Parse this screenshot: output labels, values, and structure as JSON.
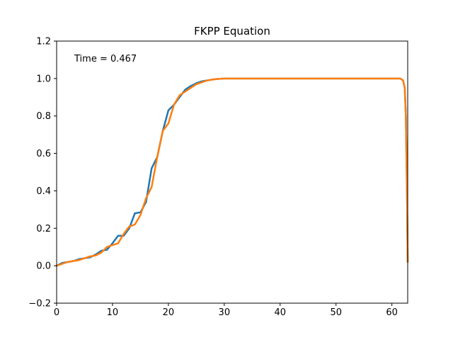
{
  "chart_data": {
    "type": "line",
    "title": "FKPP Equation",
    "annotation": "Time = 0.467",
    "xlim": [
      0,
      62.83
    ],
    "ylim": [
      -0.2,
      1.2
    ],
    "x_ticks": [
      0,
      10,
      20,
      30,
      40,
      50,
      60
    ],
    "y_ticks": [
      -0.2,
      0.0,
      0.2,
      0.4,
      0.6,
      0.8,
      1.0,
      1.2
    ],
    "x_tick_labels": [
      "0",
      "10",
      "20",
      "30",
      "40",
      "50",
      "60"
    ],
    "y_tick_labels": [
      "−0.2",
      "0.0",
      "0.2",
      "0.4",
      "0.6",
      "0.8",
      "1.0",
      "1.2"
    ],
    "grid": false,
    "series": [
      {
        "color": "#1f77b4",
        "x": [
          0,
          1,
          2,
          3,
          4,
          5,
          6,
          7,
          8,
          9,
          10,
          11,
          12,
          13,
          14,
          15,
          16,
          17,
          18,
          19,
          20,
          21,
          22,
          23,
          24,
          25,
          26,
          27,
          28,
          29,
          30,
          32,
          35,
          40,
          45,
          50,
          55,
          60,
          61,
          61.5,
          62,
          62.3,
          62.5,
          62.7,
          62.83
        ],
        "y": [
          0.0,
          0.015,
          0.02,
          0.025,
          0.035,
          0.04,
          0.045,
          0.06,
          0.08,
          0.085,
          0.12,
          0.16,
          0.16,
          0.2,
          0.28,
          0.285,
          0.34,
          0.52,
          0.58,
          0.72,
          0.83,
          0.86,
          0.9,
          0.94,
          0.96,
          0.975,
          0.985,
          0.99,
          0.995,
          0.998,
          1.0,
          1.0,
          1.0,
          1.0,
          1.0,
          1.0,
          1.0,
          1.0,
          1.0,
          1.0,
          0.99,
          0.95,
          0.8,
          0.4,
          0.02
        ]
      },
      {
        "color": "#ff7f0e",
        "x": [
          0,
          1,
          2,
          3,
          4,
          5,
          6,
          7,
          8,
          9,
          10,
          11,
          12,
          13,
          14,
          15,
          16,
          17,
          18,
          19,
          20,
          21,
          22,
          23,
          24,
          25,
          26,
          27,
          28,
          29,
          30,
          32,
          35,
          40,
          45,
          50,
          55,
          60,
          61,
          61.5,
          62,
          62.3,
          62.5,
          62.7,
          62.83
        ],
        "y": [
          0.0,
          0.01,
          0.02,
          0.025,
          0.03,
          0.04,
          0.05,
          0.055,
          0.07,
          0.1,
          0.11,
          0.12,
          0.17,
          0.21,
          0.22,
          0.27,
          0.36,
          0.42,
          0.58,
          0.72,
          0.76,
          0.86,
          0.91,
          0.93,
          0.95,
          0.97,
          0.98,
          0.99,
          0.995,
          0.998,
          1.0,
          1.0,
          1.0,
          1.0,
          1.0,
          1.0,
          1.0,
          1.0,
          1.0,
          1.0,
          0.99,
          0.95,
          0.8,
          0.4,
          0.02
        ]
      }
    ]
  }
}
